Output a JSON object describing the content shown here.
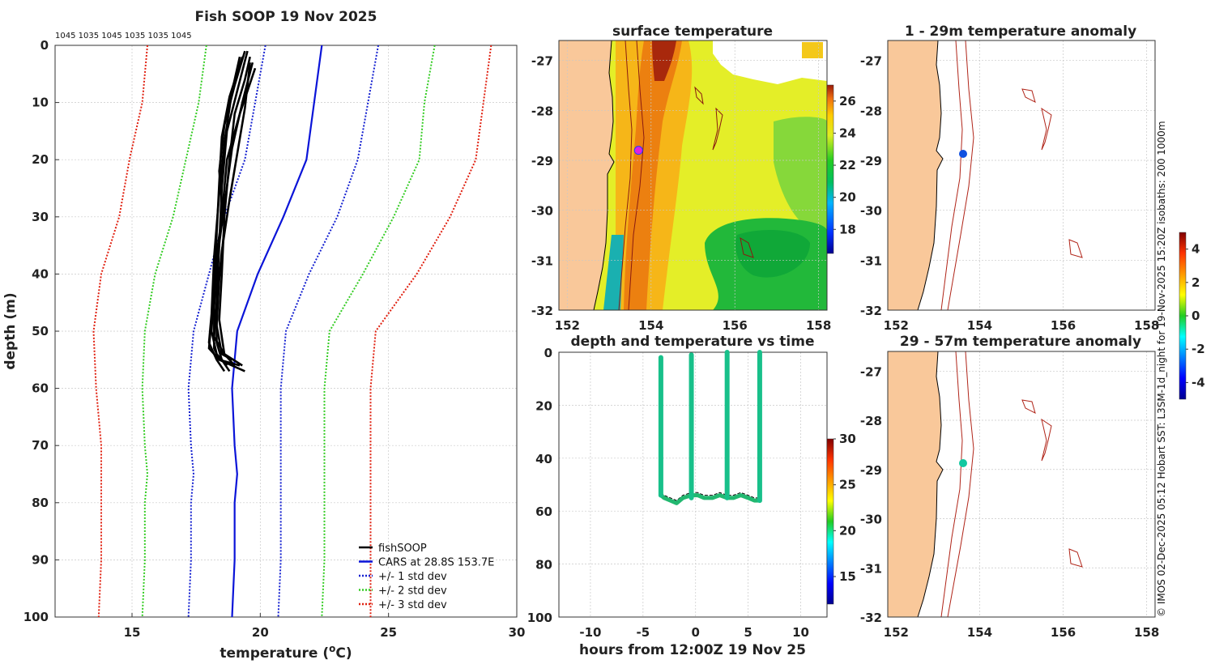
{
  "profile_panel": {
    "title": "Fish SOOP 19 Nov 2025",
    "pressure_labels": "1045 1035 1045 1035 1035 1045",
    "xlabel": "temperature (",
    "xlabel_unit": "o",
    "xlabel_end": "C)",
    "ylabel": "depth (m)",
    "x_ticks": [
      "15",
      "20",
      "25",
      "30"
    ],
    "y_ticks": [
      "0",
      "10",
      "20",
      "30",
      "40",
      "50",
      "60",
      "70",
      "80",
      "90",
      "100"
    ],
    "legend": [
      {
        "label": "fishSOOP",
        "color": "#000000",
        "style": "solid"
      },
      {
        "label": "CARS at 28.8S 153.7E",
        "color": "#0a14d8",
        "style": "solid"
      },
      {
        "label": "+/- 1 std dev",
        "color": "#1420d0",
        "style": "dotted"
      },
      {
        "label": "+/- 2 std dev",
        "color": "#33cc22",
        "style": "dotted"
      },
      {
        "label": "+/- 3 std dev",
        "color": "#e02010",
        "style": "dotted"
      }
    ]
  },
  "sst_panel": {
    "title": "surface temperature",
    "x_ticks": [
      "152",
      "154",
      "156",
      "158"
    ],
    "y_ticks": [
      "-27",
      "-28",
      "-29",
      "-30",
      "-31",
      "-32"
    ],
    "colorbar_ticks": [
      "26",
      "24",
      "22",
      "20",
      "18"
    ]
  },
  "time_panel": {
    "title": "depth and temperature vs time",
    "xlabel": "hours from 12:00Z 19 Nov 25",
    "x_ticks": [
      "-10",
      "-5",
      "0",
      "5",
      "10"
    ],
    "y_ticks": [
      "0",
      "20",
      "40",
      "60",
      "80",
      "100"
    ],
    "colorbar_ticks": [
      "30",
      "25",
      "20",
      "15"
    ]
  },
  "anom1_panel": {
    "title": "1 - 29m temperature anomaly",
    "x_ticks": [
      "152",
      "154",
      "156",
      "158"
    ],
    "y_ticks": [
      "-27",
      "-28",
      "-29",
      "-30",
      "-31",
      "-32"
    ]
  },
  "anom2_panel": {
    "title": "29 - 57m temperature anomaly",
    "x_ticks": [
      "152",
      "154",
      "156",
      "158"
    ],
    "y_ticks": [
      "-27",
      "-28",
      "-29",
      "-30",
      "-31",
      "-32"
    ]
  },
  "anomaly_colorbar_ticks": [
    "4",
    "2",
    "0",
    "-2",
    "-4"
  ],
  "side_caption": "© IMOS 02-Dec-2025 05:12 Hobart SST: L3SM-1d_night for 19-Nov-2025 15:20Z isobaths: 200  1000m",
  "colors": {
    "land": "#f9c89a",
    "isobath": "#b02418",
    "grid": "#c8c8c8"
  },
  "chart_data": [
    {
      "type": "line",
      "title": "Fish SOOP 19 Nov 2025",
      "xlabel": "temperature (oC)",
      "ylabel": "depth (m)",
      "xlim": [
        12,
        30
      ],
      "ylim": [
        100,
        0
      ],
      "grid": true,
      "legend_position": "bottom-right",
      "depths": [
        0,
        10,
        20,
        30,
        40,
        50,
        60,
        70,
        75,
        80,
        90,
        100
      ],
      "series": [
        {
          "name": "CARS at 28.8S 153.7E",
          "values": [
            22.4,
            22.1,
            21.8,
            20.9,
            19.9,
            19.1,
            18.9,
            19.0,
            19.1,
            19.0,
            19.0,
            18.9
          ]
        },
        {
          "name": "+/- 1 std dev (upper)",
          "values": [
            20.2,
            19.8,
            19.4,
            18.6,
            18.0,
            17.4,
            17.2,
            17.3,
            17.4,
            17.3,
            17.3,
            17.2
          ]
        },
        {
          "name": "+/- 1 std dev (lower)",
          "values": [
            24.6,
            24.2,
            23.8,
            23.0,
            21.9,
            21.0,
            20.8,
            20.8,
            20.8,
            20.8,
            20.8,
            20.7
          ]
        },
        {
          "name": "+/- 2 std dev (upper)",
          "values": [
            17.9,
            17.6,
            17.1,
            16.6,
            15.9,
            15.5,
            15.4,
            15.5,
            15.6,
            15.5,
            15.5,
            15.4
          ]
        },
        {
          "name": "+/- 2 std dev (lower)",
          "values": [
            26.8,
            26.4,
            26.2,
            25.2,
            24.0,
            22.7,
            22.5,
            22.5,
            22.5,
            22.5,
            22.5,
            22.4
          ]
        },
        {
          "name": "+/- 3 std dev (upper)",
          "values": [
            15.6,
            15.4,
            14.9,
            14.5,
            13.8,
            13.5,
            13.6,
            13.8,
            13.8,
            13.8,
            13.8,
            13.7
          ]
        },
        {
          "name": "+/- 3 std dev (lower)",
          "values": [
            29.0,
            28.7,
            28.4,
            27.4,
            26.1,
            24.5,
            24.3,
            24.3,
            24.3,
            24.3,
            24.3,
            24.3
          ]
        }
      ],
      "fishsoop_casts": [
        {
          "depths": [
            2,
            6,
            12,
            20,
            30,
            40,
            48,
            54,
            56
          ],
          "temps": [
            19.6,
            19.4,
            19.0,
            18.8,
            18.6,
            18.5,
            18.4,
            18.6,
            19.0
          ]
        },
        {
          "depths": [
            1,
            8,
            15,
            25,
            35,
            44,
            52,
            55,
            57
          ],
          "temps": [
            19.5,
            19.1,
            18.7,
            18.5,
            18.4,
            18.3,
            18.3,
            18.5,
            18.8
          ]
        },
        {
          "depths": [
            3,
            10,
            18,
            28,
            38,
            46,
            53,
            55,
            56
          ],
          "temps": [
            19.7,
            19.3,
            18.9,
            18.6,
            18.3,
            18.2,
            18.2,
            18.4,
            19.2
          ]
        },
        {
          "depths": [
            2,
            9,
            16,
            24,
            33,
            42,
            50,
            54,
            56
          ],
          "temps": [
            19.3,
            18.8,
            18.5,
            18.4,
            18.3,
            18.2,
            18.1,
            18.3,
            18.7
          ]
        },
        {
          "depths": [
            4,
            12,
            20,
            30,
            40,
            48,
            53,
            55,
            57
          ],
          "temps": [
            19.8,
            19.2,
            18.7,
            18.5,
            18.2,
            18.1,
            18.0,
            18.4,
            19.4
          ]
        },
        {
          "depths": [
            1,
            7,
            14,
            22,
            32,
            41,
            49,
            54,
            55
          ],
          "temps": [
            19.4,
            19.0,
            18.6,
            18.4,
            18.6,
            18.4,
            18.3,
            18.5,
            18.9
          ]
        },
        {
          "depths": [
            3,
            11,
            19,
            27,
            36,
            45,
            51,
            54,
            56
          ],
          "temps": [
            19.6,
            19.4,
            19.1,
            18.8,
            18.5,
            18.3,
            18.2,
            18.6,
            19.3
          ]
        },
        {
          "depths": [
            2,
            8,
            17,
            26,
            37,
            47,
            52,
            55,
            57
          ],
          "temps": [
            19.2,
            18.9,
            18.6,
            18.4,
            18.2,
            18.1,
            18.0,
            18.3,
            18.6
          ]
        }
      ]
    },
    {
      "type": "scatter",
      "title": "depth and temperature vs time",
      "xlabel": "hours from 12:00Z 19 Nov 25",
      "ylabel": "",
      "xlim": [
        -13,
        12.5
      ],
      "ylim": [
        100,
        0
      ],
      "colorbar_range": [
        12,
        30
      ],
      "casts": [
        {
          "hours": -3.3,
          "top_depth": 2,
          "bottom_depth": 54,
          "temperature": 18.6
        },
        {
          "hours": -0.4,
          "top_depth": 1,
          "bottom_depth": 55,
          "temperature": 18.5
        },
        {
          "hours": 3.0,
          "top_depth": 0,
          "bottom_depth": 55,
          "temperature": 18.8
        },
        {
          "hours": 6.1,
          "top_depth": 0,
          "bottom_depth": 56,
          "temperature": 19.2
        }
      ],
      "bottom_track": {
        "hours": [
          -3.3,
          -3.0,
          -2.4,
          -1.8,
          -1.2,
          -0.4,
          0.2,
          0.8,
          1.6,
          2.3,
          3.0,
          3.6,
          4.3,
          5.0,
          5.6,
          6.1
        ],
        "depths": [
          54,
          55,
          56,
          57,
          55,
          54,
          54,
          55,
          55,
          54,
          55,
          55,
          54,
          55,
          56,
          56
        ]
      }
    },
    {
      "type": "heatmap",
      "title": "surface temperature",
      "xlim": [
        151.8,
        158.2
      ],
      "ylim": [
        -32,
        -26.6
      ],
      "colorbar_range": [
        16.5,
        27
      ],
      "colorbar_ticks": [
        26,
        24,
        22,
        20,
        18
      ],
      "float_position": {
        "lon": 153.7,
        "lat": -28.8
      }
    }
  ]
}
